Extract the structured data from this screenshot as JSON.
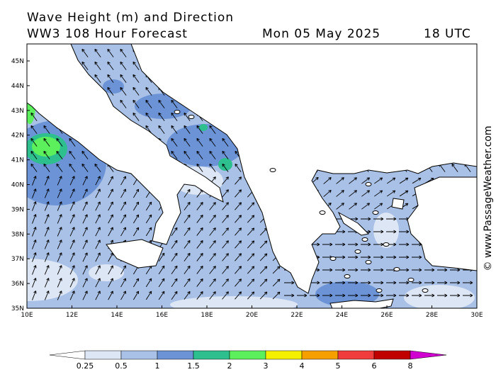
{
  "header": {
    "title": "Wave Height (m) and Direction",
    "subtitle": "WW3 108 Hour Forecast",
    "date": "Mon 05 May 2025",
    "time": "18 UTC"
  },
  "lat_labels": [
    "45N",
    "44N",
    "43N",
    "42N",
    "41N",
    "40N",
    "39N",
    "38N",
    "37N",
    "36N",
    "35N"
  ],
  "lon_labels": [
    "10E",
    "12E",
    "14E",
    "16E",
    "18E",
    "20E",
    "22E",
    "24E",
    "26E",
    "28E",
    "30E"
  ],
  "colorbar": {
    "labels": [
      "0.25",
      "0.5",
      "1",
      "1.5",
      "2",
      "3",
      "4",
      "5",
      "6",
      "8"
    ],
    "colors": [
      "#ffffff",
      "#dde6f5",
      "#a9c1e6",
      "#6b93d6",
      "#2ebf8f",
      "#5cf05c",
      "#f5f000",
      "#f5a000",
      "#f03c3c",
      "#c00000",
      "#d000d0"
    ]
  },
  "watermark": "© www.PassageWeather.com"
}
